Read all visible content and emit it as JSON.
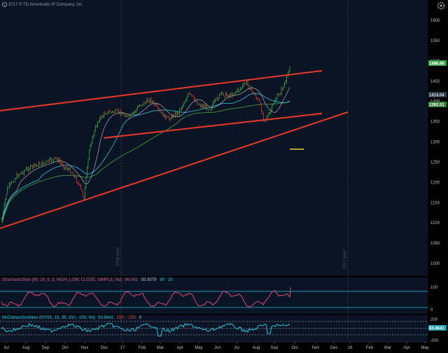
{
  "header": {
    "copyright": "2017 © TD Ameritrade IP Company, Inc."
  },
  "icons": {
    "settings": "gear-icon",
    "copyright": "copyright-icon"
  },
  "colors": {
    "background": "#0b1424",
    "price_up": "#37c24a",
    "price_down": "#e8403a",
    "trendline": "#e8392a",
    "ma_fast": "#c4c9cf",
    "ma_mid": "#27b3c8",
    "ma_slow": "#46a23c",
    "stoch": "#d64a78",
    "stoch_level": "#21c6d6",
    "mcclellan": "#27c6d6",
    "badge_price": "#37a046",
    "badge_ma": "#2a3a4a",
    "badge_ma2": "#2e7d35"
  },
  "price_axis": {
    "labels": [
      "1600",
      "1550",
      "1500",
      "1450",
      "1400",
      "1350",
      "1300",
      "1250",
      "1200",
      "1150",
      "1100",
      "1050",
      "1000"
    ],
    "badges": [
      {
        "label": "1496.86",
        "color": "#37a046"
      },
      {
        "label": "1414.04",
        "color": "#2a3a4a"
      },
      {
        "label": "1392.51",
        "color": "#2e7d35"
      }
    ]
  },
  "year_markers": [
    "2016 year",
    "2017 year"
  ],
  "stochastic": {
    "title": "StochasticSlow (80, 20, 8, 3, HIGH, LOW, CLOSE, SIMPLE, No)",
    "value1": "96.092",
    "value2": "93.9079",
    "level_high": "80",
    "level_low": "20",
    "axis_labels": [
      "100",
      "0"
    ]
  },
  "mcclellan": {
    "title": "McClellanOscillator (NYSE, 19, 39, 150, -150, No)",
    "value": "83.6641",
    "upper": "150",
    "lower": "-150",
    "zero": "0",
    "axis_labels": [
      "200",
      "-200"
    ],
    "badge": "83.6641"
  },
  "x_axis": {
    "labels": [
      "Jul",
      "Aug",
      "Sep",
      "Oct",
      "Nov",
      "Dec",
      "17",
      "Feb",
      "Mar",
      "Apr",
      "May",
      "Jun",
      "Jul",
      "Aug",
      "Sep",
      "Oct",
      "Nov",
      "Dec",
      "18",
      "Feb",
      "Mar",
      "Apr",
      "May"
    ]
  }
}
